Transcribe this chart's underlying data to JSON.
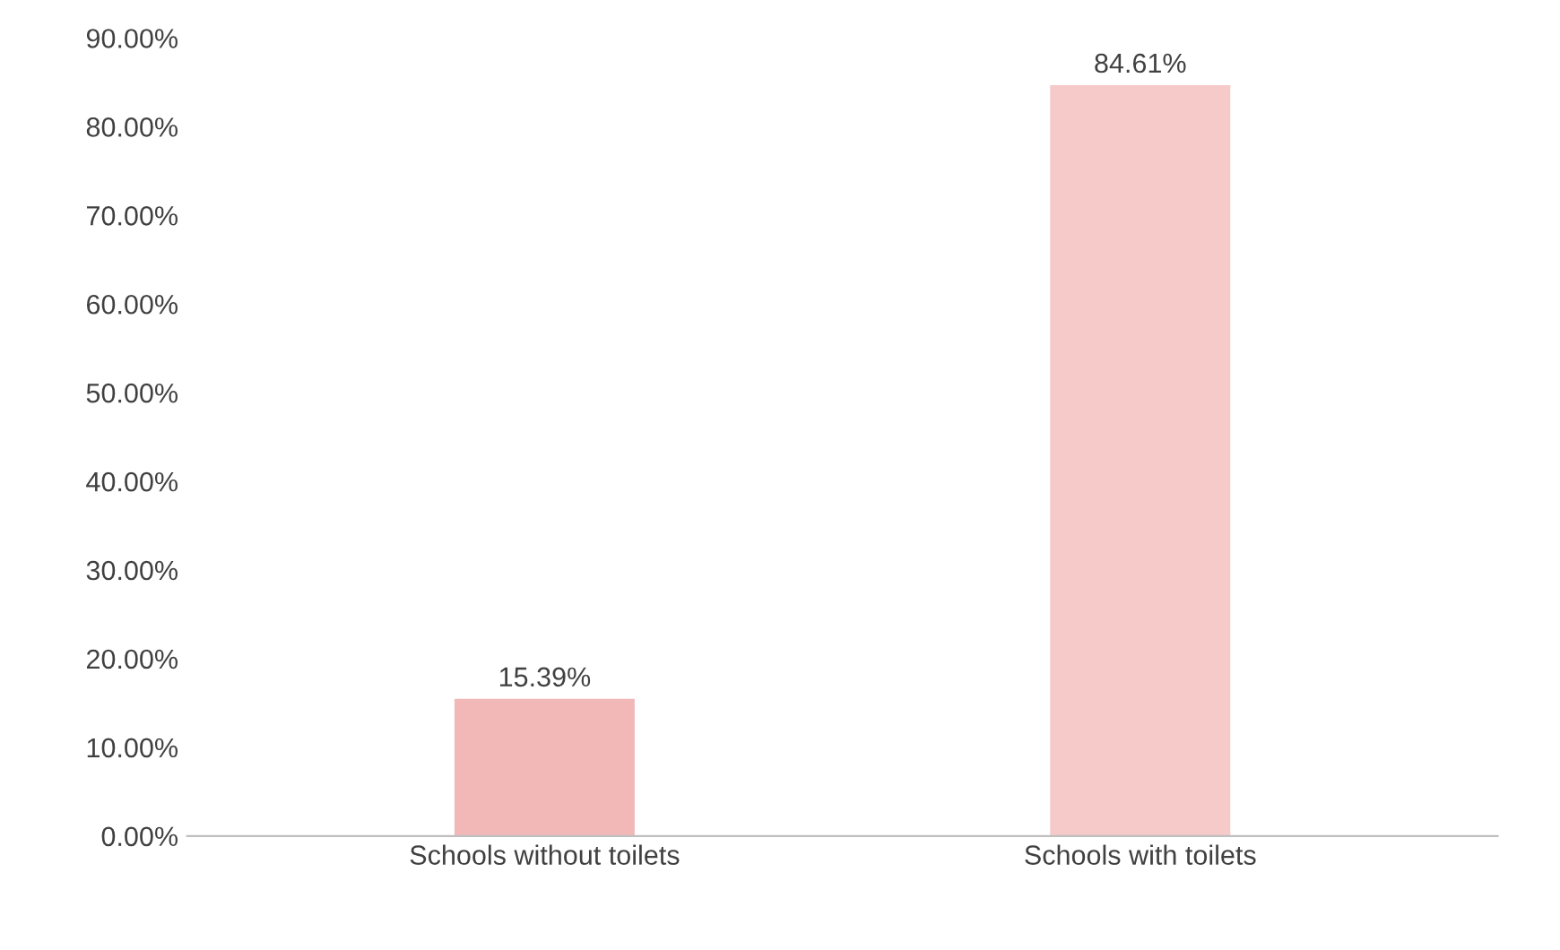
{
  "chart_data": {
    "type": "bar",
    "categories": [
      "Schools without toilets",
      "Schools with toilets"
    ],
    "values": [
      15.39,
      84.61
    ],
    "value_labels": [
      "15.39%",
      "84.61%"
    ],
    "colors": [
      "#f2b8b8",
      "#f7caca"
    ],
    "ylim": [
      0,
      90
    ],
    "yticks": [
      {
        "value": 0,
        "label": "0.00%"
      },
      {
        "value": 10,
        "label": "10.00%"
      },
      {
        "value": 20,
        "label": "20.00%"
      },
      {
        "value": 30,
        "label": "30.00%"
      },
      {
        "value": 40,
        "label": "40.00%"
      },
      {
        "value": 50,
        "label": "50.00%"
      },
      {
        "value": 60,
        "label": "60.00%"
      },
      {
        "value": 70,
        "label": "70.00%"
      },
      {
        "value": 80,
        "label": "80.00%"
      },
      {
        "value": 90,
        "label": "90.00%"
      }
    ],
    "grid": false
  }
}
